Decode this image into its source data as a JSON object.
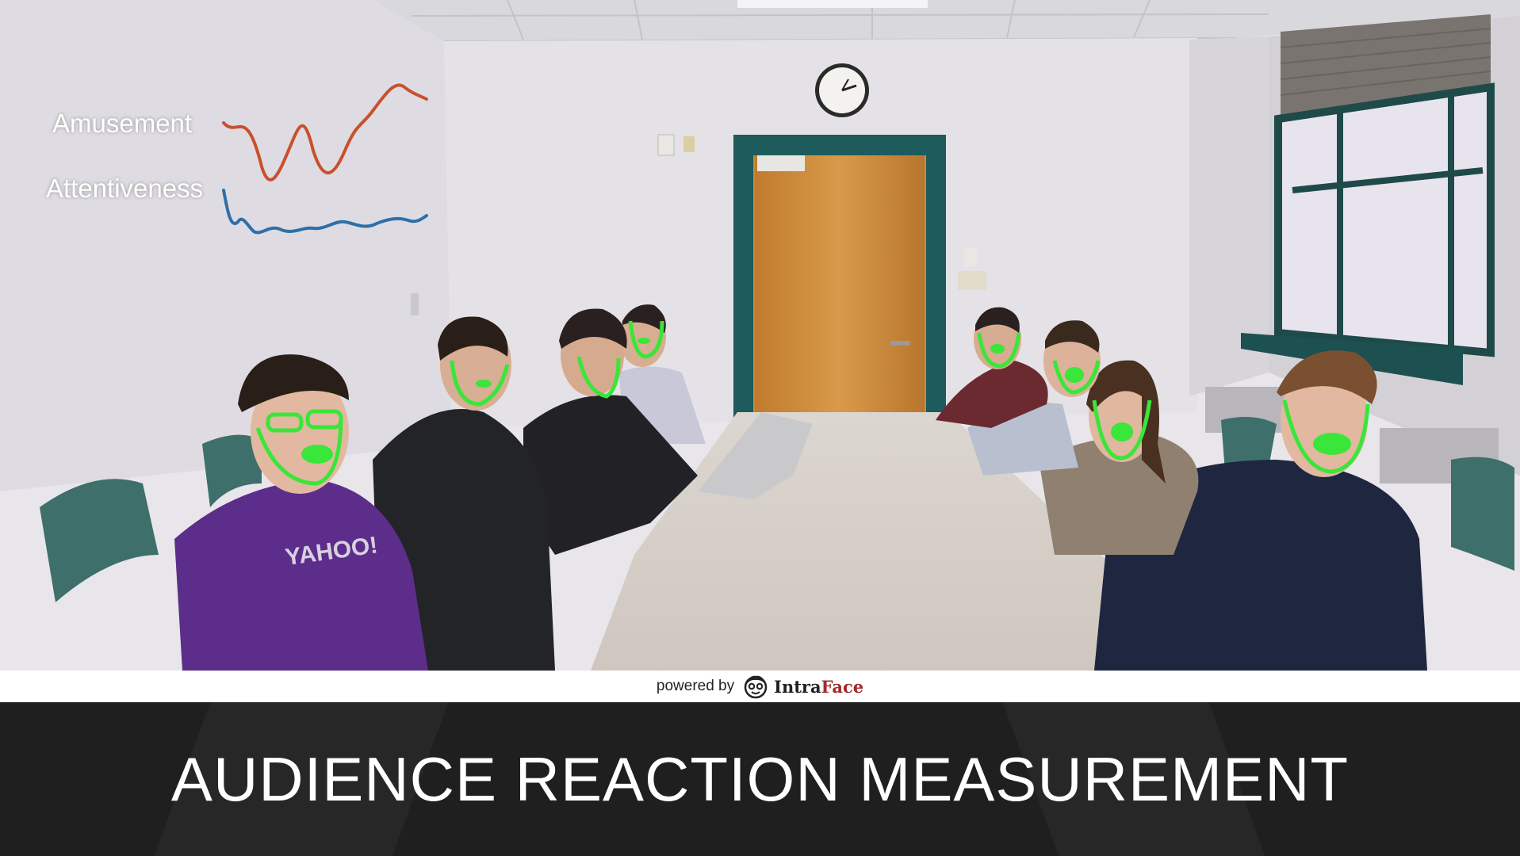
{
  "overlay": {
    "metric_labels": {
      "amusement": "Amusement",
      "attentiveness": "Attentiveness"
    },
    "colors": {
      "amusement": "#c8502d",
      "attentiveness": "#2f6fa8",
      "face_tracking": "#39e639"
    }
  },
  "shirt_text": "YAHOO!",
  "footer": {
    "powered_by": "powered by",
    "brand_intra": "Intra",
    "brand_face": "Face"
  },
  "caption": "AUDIENCE REACTION MEASUREMENT"
}
